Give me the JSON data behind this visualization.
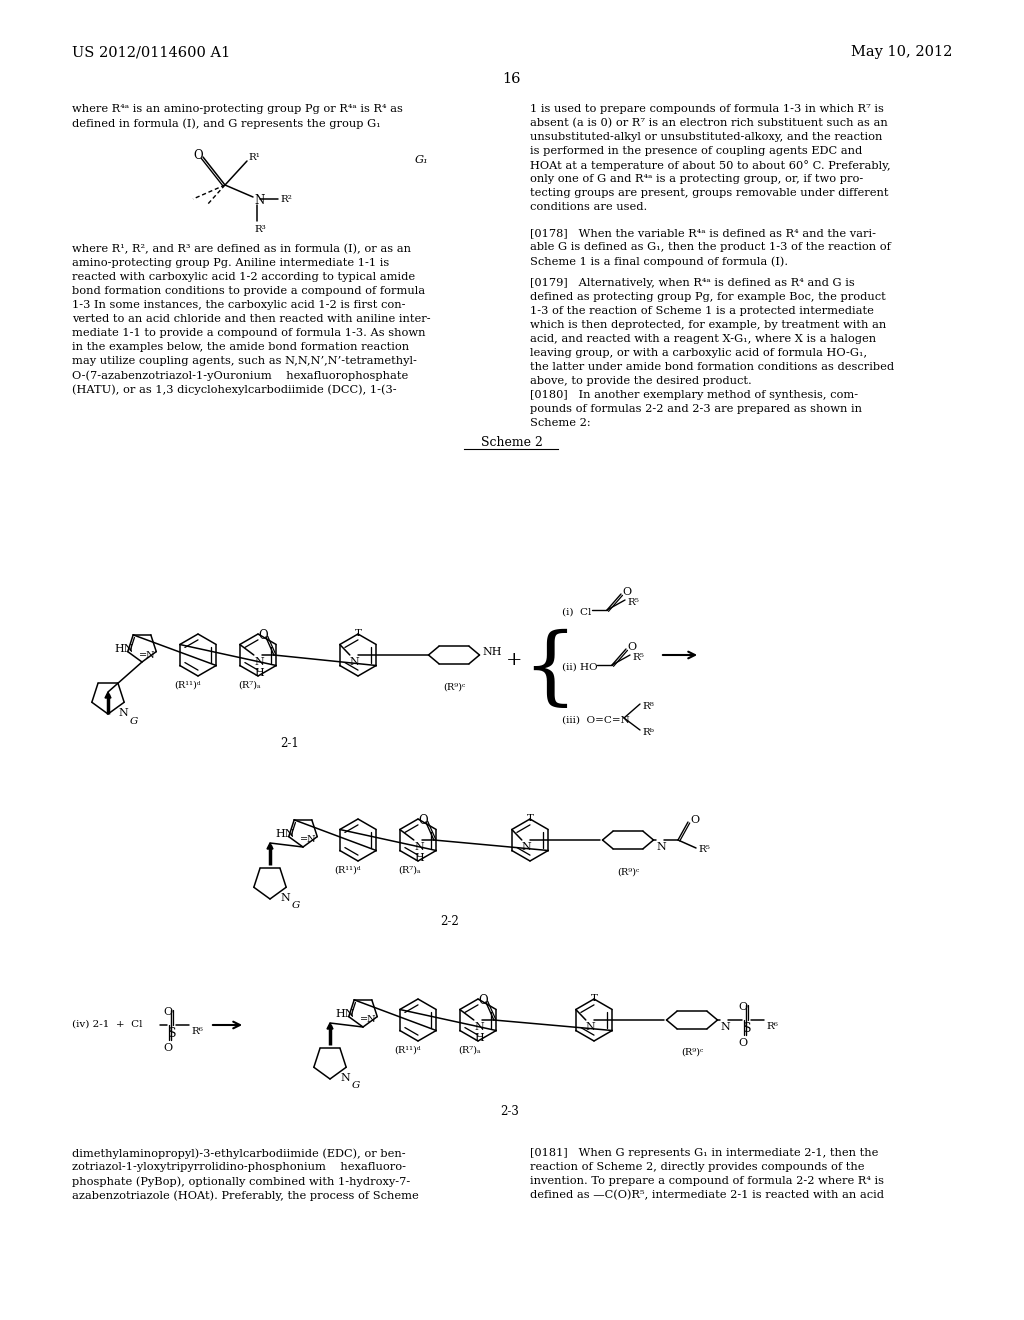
{
  "page_header_left": "US 2012/0114600 A1",
  "page_header_right": "May 10, 2012",
  "page_number": "16",
  "background_color": "#ffffff",
  "text_color": "#000000",
  "left_column_text": [
    "where R⁴ᵃ is an amino-protecting group Pg or R⁴ᵃ is R⁴ as",
    "defined in formula (I), and G represents the group G₁"
  ],
  "right_column_text_top": [
    "1 is used to prepare compounds of formula 1-3 in which R⁷ is",
    "absent (a is 0) or R⁷ is an electron rich substituent such as an",
    "unsubstituted-alkyl or unsubstituted-alkoxy, and the reaction",
    "is performed in the presence of coupling agents EDC and",
    "HOAt at a temperature of about 50 to about 60° C. Preferably,",
    "only one of G and R⁴ᵃ is a protecting group, or, if two pro-",
    "tecting groups are present, groups removable under different",
    "conditions are used."
  ],
  "p178_lines": [
    "[0178]   When the variable R⁴ᵃ is defined as R⁴ and the vari-",
    "able G is defined as G₁, then the product 1-3 of the reaction of",
    "Scheme 1 is a final compound of formula (I)."
  ],
  "p179_lines": [
    "[0179]   Alternatively, when R⁴ᵃ is defined as R⁴ and G is",
    "defined as protecting group Pg, for example Boc, the product",
    "1-3 of the reaction of Scheme 1 is a protected intermediate",
    "which is then deprotected, for example, by treatment with an",
    "acid, and reacted with a reagent X-G₁, where X is a halogen",
    "leaving group, or with a carboxylic acid of formula HO-G₁,",
    "the latter under amide bond formation conditions as described",
    "above, to provide the desired product."
  ],
  "p180_lines": [
    "[0180]   In another exemplary method of synthesis, com-",
    "pounds of formulas 2-2 and 2-3 are prepared as shown in",
    "Scheme 2:"
  ],
  "left_col_body": [
    "where R¹, R², and R³ are defined as in formula (I), or as an",
    "amino-protecting group Pg. Aniline intermediate 1-1 is",
    "reacted with carboxylic acid 1-2 according to typical amide",
    "bond formation conditions to provide a compound of formula",
    "1-3 In some instances, the carboxylic acid 1-2 is first con-",
    "verted to an acid chloride and then reacted with aniline inter-",
    "mediate 1-1 to provide a compound of formula 1-3. As shown",
    "in the examples below, the amide bond formation reaction",
    "may utilize coupling agents, such as N,N,N’,N’-tetramethyl-",
    "O-(7-azabenzotriazol-1-yOuronium    hexafluorophosphate",
    "(HATU), or as 1,3 dicyclohexylcarbodiimide (DCC), 1-(3-"
  ],
  "left_col_body2": [
    "dimethylaminopropyl)-3-ethylcarbodiimide (EDC), or ben-",
    "zotriazol-1-yloxytripyrrolidino-phosphonium    hexafluoro-",
    "phosphate (PyBop), optionally combined with 1-hydroxy-7-",
    "azabenzotriazole (HOAt). Preferably, the process of Scheme"
  ],
  "right_col_body2": [
    "[0181]   When G represents G₁ in intermediate 2-1, then the",
    "reaction of Scheme 2, directly provides compounds of the",
    "invention. To prepare a compound of formula 2-2 where R⁴ is",
    "defined as —C(O)R⁵, intermediate 2-1 is reacted with an acid"
  ],
  "scheme2_label": "Scheme 2",
  "label_21": "2-1",
  "label_22": "2-2",
  "label_23": "2-3"
}
